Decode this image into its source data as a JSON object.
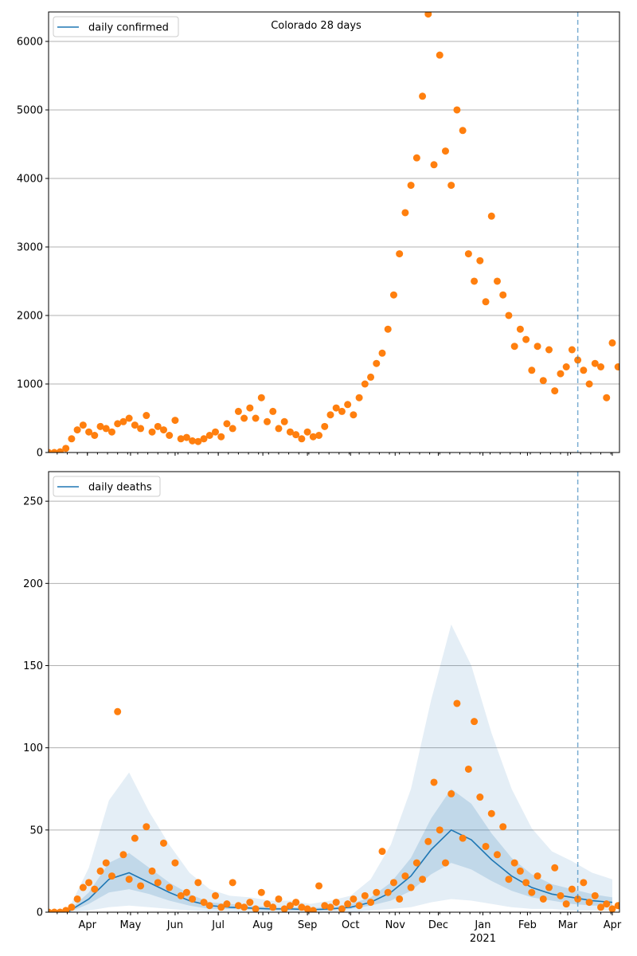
{
  "chart_data": [
    {
      "type": "scatter",
      "title": "Colorado 28 days",
      "legend": {
        "label": "daily confirmed",
        "placement": "top-left"
      },
      "x_unit": "days since 2020-03-05",
      "x_range": [
        0,
        397
      ],
      "ylim": [
        0,
        6430
      ],
      "y_ticks": [
        0,
        1000,
        2000,
        3000,
        4000,
        5000,
        6000
      ],
      "grid": "y",
      "forecast_start_day": 368,
      "points_step_days": 4,
      "points": [
        0,
        0,
        10,
        60,
        200,
        330,
        400,
        300,
        250,
        380,
        350,
        300,
        420,
        450,
        500,
        400,
        350,
        540,
        300,
        380,
        330,
        250,
        470,
        200,
        220,
        170,
        160,
        200,
        250,
        300,
        230,
        420,
        350,
        600,
        500,
        650,
        500,
        800,
        450,
        600,
        350,
        450,
        300,
        260,
        200,
        300,
        230,
        250,
        380,
        550,
        650,
        600,
        700,
        550,
        800,
        1000,
        1100,
        1300,
        1450,
        1800,
        2300,
        2900,
        3500,
        3900,
        4300,
        5200,
        6400,
        4200,
        5800,
        4400,
        3900,
        5000,
        4700,
        2900,
        2500,
        2800,
        2200,
        3450,
        2500,
        2300,
        2000,
        1550,
        1800,
        1650,
        1200,
        1550,
        1050,
        1500,
        900,
        1150,
        1250,
        1500,
        1350,
        1200,
        1000,
        1300,
        1250,
        800,
        1600,
        1250
      ]
    },
    {
      "type": "line",
      "legend": {
        "label": "daily deaths",
        "placement": "top-left"
      },
      "x_unit": "days since 2020-03-05",
      "x_range": [
        0,
        397
      ],
      "ylim": [
        0,
        268
      ],
      "y_ticks": [
        0,
        50,
        100,
        150,
        200,
        250
      ],
      "grid": "y",
      "forecast_start_day": 368,
      "x_ticks": [
        {
          "label": "Apr",
          "day": 27
        },
        {
          "label": "May",
          "day": 57
        },
        {
          "label": "Jun",
          "day": 88
        },
        {
          "label": "Jul",
          "day": 118
        },
        {
          "label": "Aug",
          "day": 149
        },
        {
          "label": "Sep",
          "day": 180
        },
        {
          "label": "Oct",
          "day": 210
        },
        {
          "label": "Nov",
          "day": 241
        },
        {
          "label": "Dec",
          "day": 271
        },
        {
          "label": "Jan",
          "day": 302
        },
        {
          "label": "Feb",
          "day": 333
        },
        {
          "label": "Mar",
          "day": 361
        },
        {
          "label": "Apr",
          "day": 392
        }
      ],
      "year_label": {
        "label": "2021",
        "day": 302
      },
      "points_step_days": 4,
      "points": [
        0,
        0,
        0,
        1,
        3,
        8,
        15,
        18,
        14,
        25,
        30,
        22,
        122,
        35,
        20,
        45,
        16,
        52,
        25,
        18,
        42,
        15,
        30,
        10,
        12,
        8,
        18,
        6,
        4,
        10,
        3,
        5,
        18,
        4,
        3,
        6,
        2,
        12,
        5,
        3,
        8,
        2,
        4,
        6,
        3,
        2,
        1,
        16,
        4,
        3,
        6,
        2,
        5,
        8,
        4,
        10,
        6,
        12,
        37,
        12,
        18,
        8,
        22,
        15,
        30,
        20,
        43,
        79,
        50,
        30,
        72,
        127,
        45,
        87,
        116,
        70,
        40,
        60,
        35,
        52,
        20,
        30,
        25,
        18,
        12,
        22,
        8,
        15,
        27,
        10,
        5,
        14,
        8,
        18,
        6,
        10,
        3,
        5,
        2,
        4
      ],
      "model_step_days": 14,
      "median": [
        0,
        0.5,
        8,
        20,
        24,
        18,
        12,
        7,
        4,
        3,
        2.5,
        2,
        2,
        1.5,
        2,
        3,
        6,
        12,
        22,
        38,
        50,
        44,
        32,
        22,
        15,
        11,
        9,
        7,
        6
      ],
      "q25": [
        0,
        0,
        5,
        12,
        14,
        11,
        7,
        4,
        2,
        2,
        1.5,
        1,
        1,
        1,
        1,
        2,
        4,
        7,
        13,
        23,
        30,
        26,
        19,
        13,
        9,
        7,
        5,
        4,
        4
      ],
      "q75": [
        0,
        1,
        12,
        30,
        36,
        27,
        18,
        11,
        6,
        5,
        4,
        3,
        3,
        2.5,
        3,
        5,
        9,
        18,
        33,
        57,
        75,
        66,
        48,
        33,
        23,
        17,
        14,
        11,
        9
      ],
      "q05": [
        0,
        0,
        1,
        3,
        4,
        3,
        2,
        1,
        0.5,
        0.5,
        0,
        0,
        0,
        0,
        0,
        0,
        1,
        2,
        3,
        6,
        8,
        7,
        5,
        3,
        2,
        2,
        1,
        1,
        1
      ],
      "q95": [
        0,
        2,
        27,
        68,
        85,
        61,
        41,
        24,
        14,
        10,
        9,
        7,
        7,
        5,
        7,
        10,
        20,
        41,
        75,
        129,
        175,
        150,
        109,
        75,
        51,
        37,
        31,
        24,
        20
      ]
    }
  ],
  "colors": {
    "line": "#1f77b4",
    "points": "#ff7f0e",
    "band": "#1f77b4",
    "grid": "#b0b0b0"
  }
}
